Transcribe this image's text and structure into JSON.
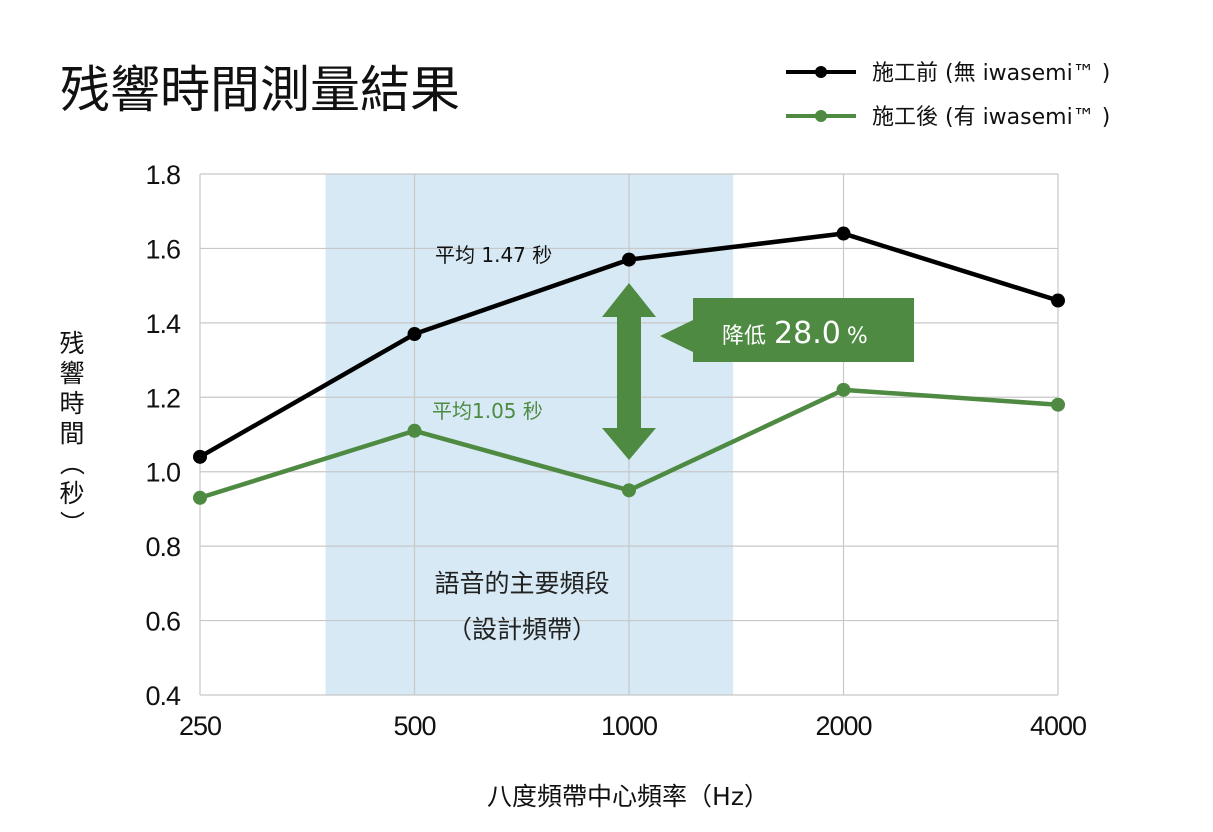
{
  "chart_data": {
    "type": "line",
    "title": "残響時間測量結果",
    "categories": [
      "250",
      "500",
      "1000",
      "2000",
      "4000"
    ],
    "series": [
      {
        "name": "施工前 (無 iwasemi™ )",
        "color": "#000000",
        "values": [
          1.04,
          1.37,
          1.57,
          1.64,
          1.46
        ]
      },
      {
        "name": "施工後 (有 iwasemi™ )",
        "color": "#4e8a42",
        "values": [
          0.93,
          1.11,
          0.95,
          1.22,
          1.18
        ]
      }
    ],
    "xlabel": "八度頻帶中心頻率（Hz）",
    "ylabel": "残響時間（秒）",
    "ylim": [
      0.4,
      1.8
    ],
    "yticks": [
      "0.4",
      "0.6",
      "0.8",
      "1.0",
      "1.2",
      "1.4",
      "1.6",
      "1.8"
    ],
    "grid": true,
    "legend_position": "top-right",
    "highlight_band": {
      "x_range": [
        375,
        1400
      ],
      "color": "#d6e9f4",
      "label_line1": "語音的主要頻段",
      "label_line2": "（設計頻帶）"
    },
    "annotations": {
      "avg_before": "平均 1.47 秒",
      "avg_after": "平均1.05 秒",
      "reduction_prefix": "降低",
      "reduction_value": "28.0",
      "reduction_unit": "%"
    },
    "colors": {
      "before": "#000000",
      "after": "#4e8a42",
      "accent_green": "#4e8a42",
      "grid": "#c8c8c8",
      "band": "#d6e9f4"
    }
  }
}
